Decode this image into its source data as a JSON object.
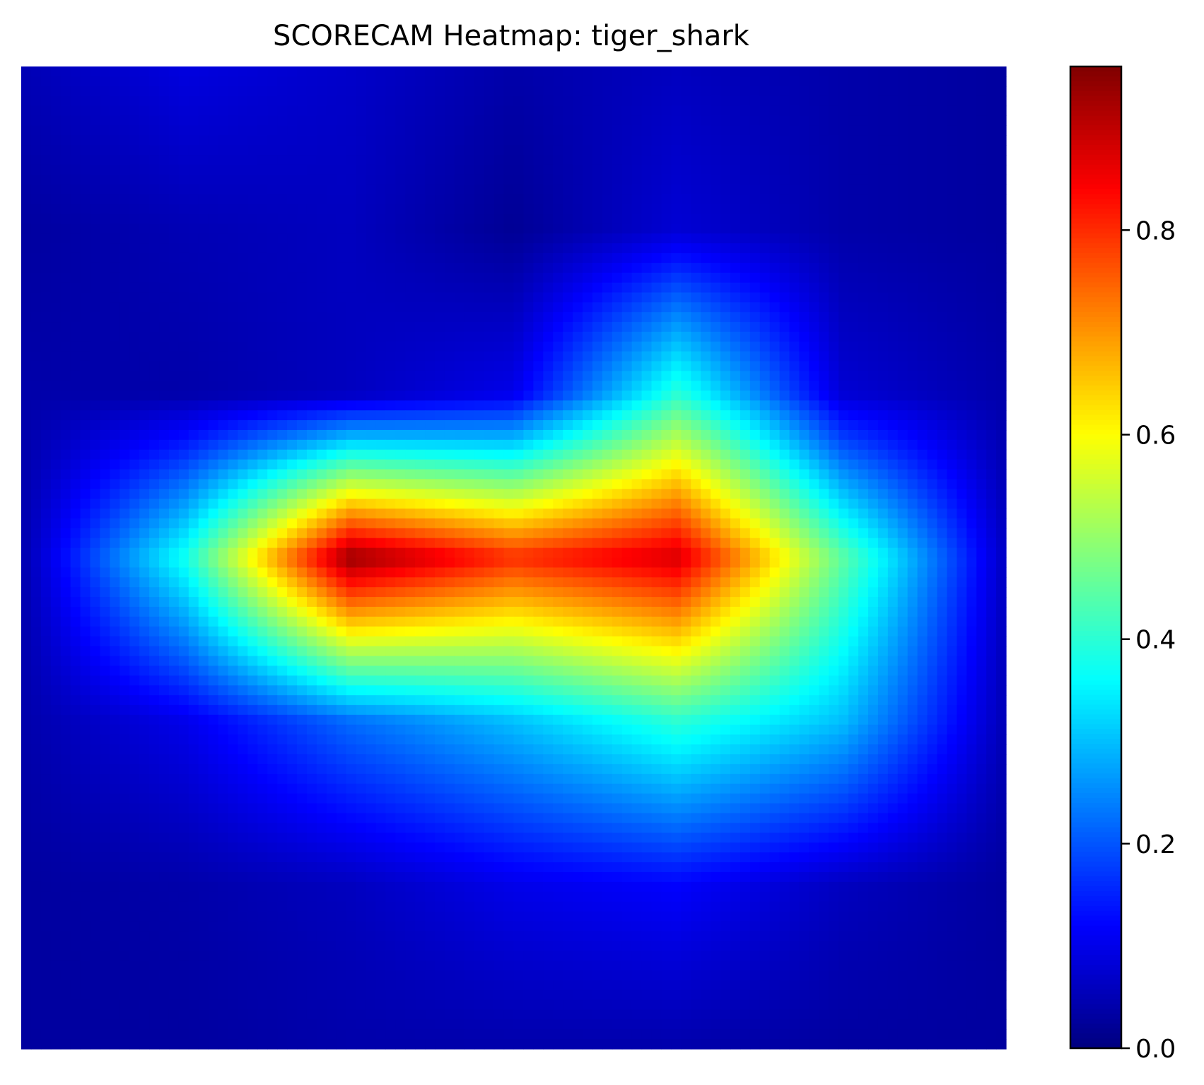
{
  "chart_data": {
    "type": "heatmap",
    "title": "SCORECAM Heatmap: tiger_shark",
    "xlabel": "",
    "ylabel": "",
    "axes_visible": false,
    "grid": false,
    "colormap": "jet",
    "colorbar": {
      "position": "right",
      "range": [
        0.0,
        0.96
      ],
      "ticks": [
        0.0,
        0.2,
        0.4,
        0.6,
        0.8
      ],
      "tick_labels": [
        "0.0",
        "0.2",
        "0.4",
        "0.6",
        "0.8"
      ]
    },
    "grid_size": [
      7,
      7
    ],
    "values": [
      [
        0.05,
        0.09,
        0.07,
        0.04,
        0.06,
        0.04,
        0.03
      ],
      [
        0.03,
        0.05,
        0.06,
        0.02,
        0.08,
        0.04,
        0.03
      ],
      [
        0.04,
        0.04,
        0.06,
        0.1,
        0.4,
        0.08,
        0.04
      ],
      [
        0.04,
        0.38,
        0.94,
        0.8,
        0.88,
        0.45,
        0.06
      ],
      [
        0.04,
        0.1,
        0.22,
        0.3,
        0.4,
        0.3,
        0.05
      ],
      [
        0.03,
        0.04,
        0.06,
        0.1,
        0.12,
        0.06,
        0.03
      ],
      [
        0.03,
        0.03,
        0.04,
        0.04,
        0.04,
        0.03,
        0.03
      ]
    ]
  }
}
